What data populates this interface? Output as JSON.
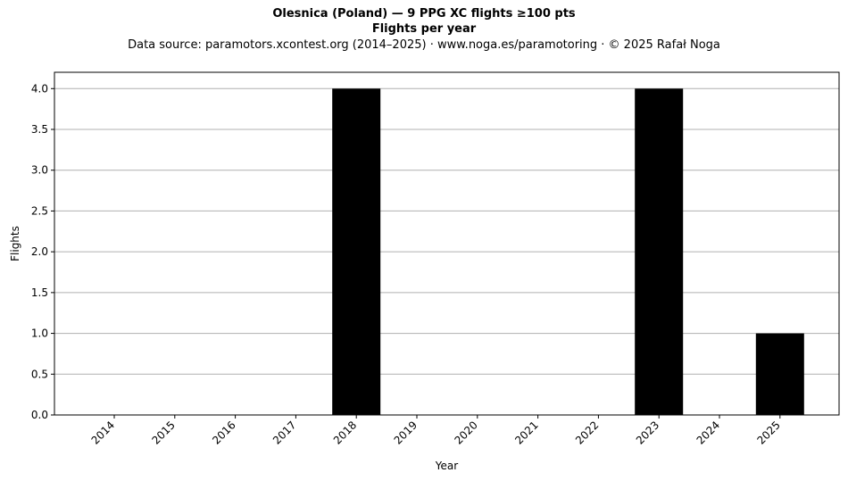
{
  "chart_data": {
    "type": "bar",
    "title": "Olesnica (Poland)  —  9 PPG XC flights ≥100 pts",
    "subtitle": "Flights per year",
    "note": "Data source: paramotors.xcontest.org (2014–2025)  ·  www.noga.es/paramotoring  ·  © 2025 Rafał Noga",
    "xlabel": "Year",
    "ylabel": "Flights",
    "categories": [
      "2014",
      "2015",
      "2016",
      "2017",
      "2018",
      "2019",
      "2020",
      "2021",
      "2022",
      "2023",
      "2024",
      "2025"
    ],
    "values": [
      0,
      0,
      0,
      0,
      4,
      0,
      0,
      0,
      0,
      4,
      0,
      1
    ],
    "ylim": [
      0,
      4.2
    ],
    "yticks": [
      "0.0",
      "0.5",
      "1.0",
      "1.5",
      "2.0",
      "2.5",
      "3.0",
      "3.5",
      "4.0"
    ],
    "grid": "horizontal",
    "bar_color": "#000000",
    "grid_color": "#b0b0b0"
  }
}
